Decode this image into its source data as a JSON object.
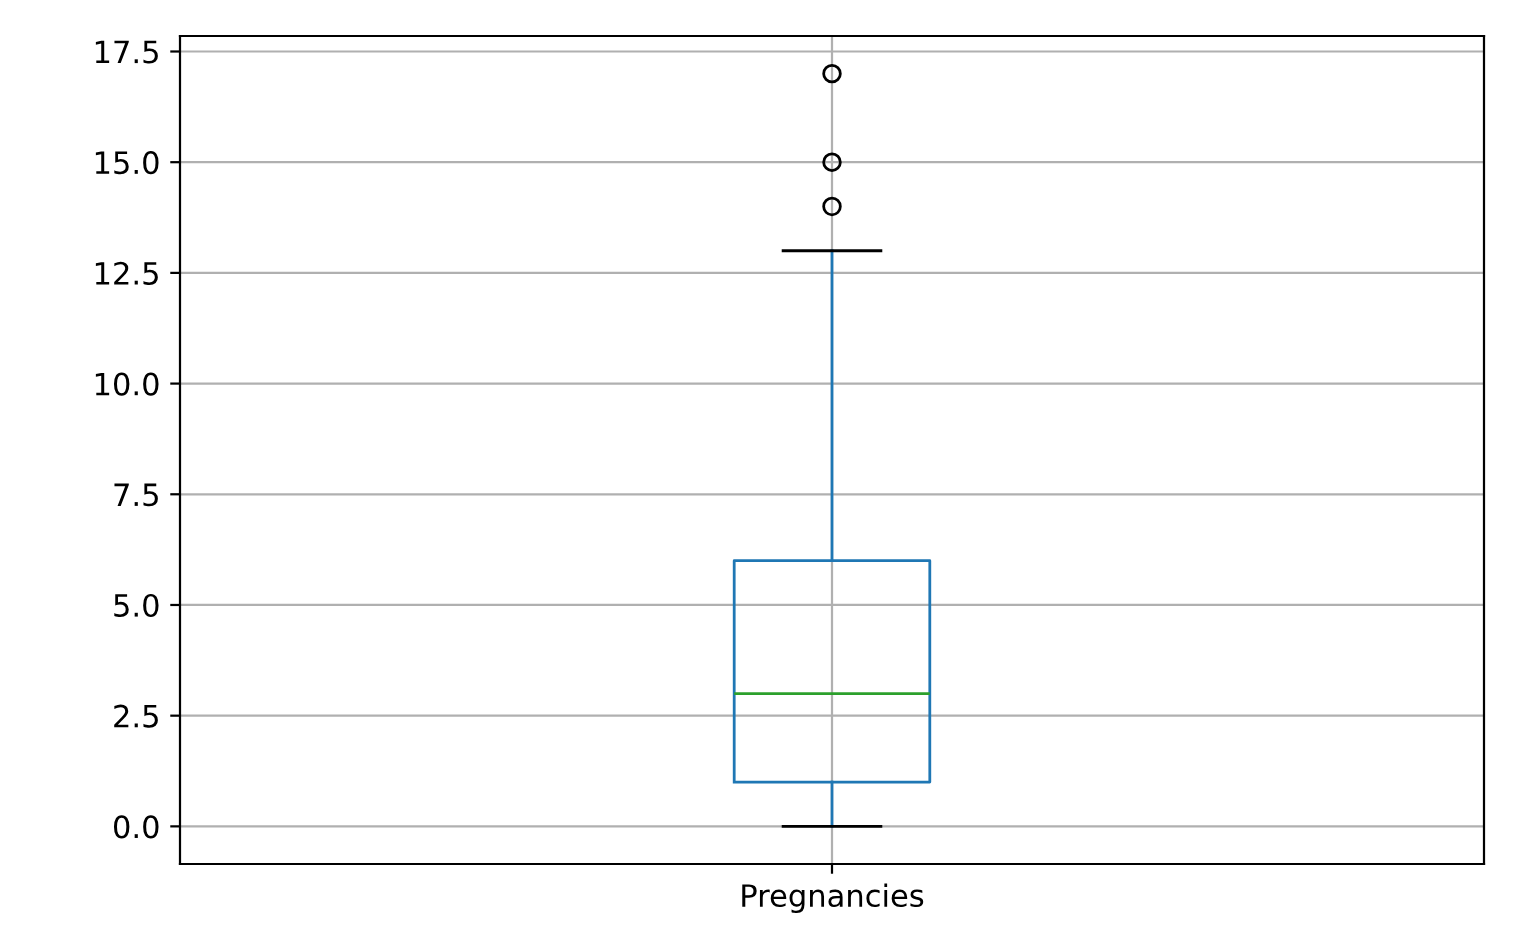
{
  "chart_data": {
    "type": "box",
    "categories": [
      "Pregnancies"
    ],
    "boxes": [
      {
        "low": 0,
        "q1": 1,
        "median": 3,
        "q3": 6,
        "high": 13,
        "outliers": [
          14,
          15,
          17
        ]
      }
    ],
    "color": "#1f77b4",
    "ylim": [
      -0.85,
      17.85
    ],
    "yticks": [
      {
        "value": 0,
        "label": "0.0"
      },
      {
        "value": 2.5,
        "label": "2.5"
      },
      {
        "value": 5,
        "label": "5.0"
      },
      {
        "value": 7.5,
        "label": "7.5"
      },
      {
        "value": 10,
        "label": "10.0"
      },
      {
        "value": 12.5,
        "label": "12.5"
      },
      {
        "value": 15,
        "label": "15.0"
      },
      {
        "value": 17.5,
        "label": "17.5"
      }
    ],
    "grid": true
  }
}
